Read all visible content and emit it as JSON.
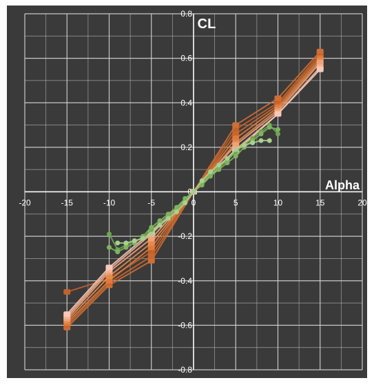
{
  "chart_data": {
    "type": "scatter",
    "title": "",
    "xlabel": "Alpha",
    "ylabel": "CL",
    "xlim": [
      -20,
      20
    ],
    "ylim": [
      -0.8,
      0.8
    ],
    "x_ticks": [
      "-20",
      "-15",
      "-10",
      "-5",
      "0",
      "5",
      "10",
      "15",
      "20"
    ],
    "y_ticks": [
      "0.8",
      "0.6",
      "0.4",
      "0.2",
      "0",
      "-0.2",
      "-0.4",
      "-0.6",
      "-0.8"
    ],
    "x_tick_values": [
      -20,
      -15,
      -10,
      -5,
      0,
      5,
      10,
      15,
      20
    ],
    "y_tick_values": [
      0.8,
      0.6,
      0.4,
      0.2,
      0,
      -0.2,
      -0.4,
      -0.6,
      -0.8
    ],
    "grid": true,
    "colors": {
      "background": "#3a3a3a",
      "grid": "#d8d8d8",
      "text": "#ffffff",
      "orange_dark": "#c0622a",
      "orange": "#e88a4c",
      "orange_light": "#f0a27a",
      "pink_light": "#f7c9b8",
      "green": "#6aa84f",
      "green_light": "#a9d08e"
    },
    "series": [
      {
        "color": "#c0622a",
        "x": [
          -15,
          -10,
          -5,
          0,
          5,
          10,
          15
        ],
        "y": [
          -0.45,
          -0.39,
          -0.27,
          0.0,
          0.28,
          0.4,
          0.62
        ]
      },
      {
        "color": "#d06e33",
        "x": [
          -15,
          -10,
          -5,
          0,
          5,
          10,
          15
        ],
        "y": [
          -0.61,
          -0.42,
          -0.31,
          0.0,
          0.3,
          0.42,
          0.63
        ]
      },
      {
        "color": "#c8672e",
        "x": [
          -15,
          -10,
          -5,
          0,
          5,
          10,
          15
        ],
        "y": [
          -0.6,
          -0.41,
          -0.29,
          0.0,
          0.26,
          0.39,
          0.61
        ]
      },
      {
        "color": "#e07a3a",
        "x": [
          -15,
          -10,
          -5,
          0,
          5,
          10,
          15
        ],
        "y": [
          -0.59,
          -0.4,
          -0.25,
          0.0,
          0.24,
          0.38,
          0.6
        ]
      },
      {
        "color": "#e88a4c",
        "x": [
          -15,
          -10,
          -5,
          0,
          5,
          10,
          15
        ],
        "y": [
          -0.58,
          -0.38,
          -0.23,
          0.0,
          0.22,
          0.37,
          0.59
        ]
      },
      {
        "color": "#f0a27a",
        "x": [
          -15,
          -10,
          -5,
          0,
          5,
          10,
          15
        ],
        "y": [
          -0.57,
          -0.36,
          -0.21,
          0.0,
          0.21,
          0.36,
          0.58
        ]
      },
      {
        "color": "#f4b396",
        "x": [
          -15,
          -10,
          -5,
          0,
          5,
          10,
          15
        ],
        "y": [
          -0.56,
          -0.35,
          -0.19,
          0.0,
          0.19,
          0.35,
          0.56
        ]
      },
      {
        "color": "#f7c9b8",
        "x": [
          -15,
          -10,
          -5,
          0,
          5,
          10,
          15
        ],
        "y": [
          -0.55,
          -0.34,
          -0.18,
          0.0,
          0.18,
          0.35,
          0.55
        ]
      },
      {
        "color": "#6aa84f",
        "x": [
          -10,
          -9,
          -8,
          -7,
          -6,
          -5,
          -4,
          -3,
          -2,
          -1,
          0,
          1,
          2,
          3,
          4,
          5,
          6,
          7,
          8,
          9,
          10
        ],
        "y": [
          -0.19,
          -0.26,
          -0.24,
          -0.22,
          -0.21,
          -0.17,
          -0.14,
          -0.11,
          -0.08,
          -0.04,
          0.0,
          0.04,
          0.08,
          0.11,
          0.14,
          0.18,
          0.21,
          0.24,
          0.27,
          0.3,
          0.26
        ]
      },
      {
        "color": "#7fb35f",
        "x": [
          -10,
          -9,
          -8,
          -7,
          -6,
          -5,
          -4,
          -3,
          -2,
          -1,
          0,
          1,
          2,
          3,
          4,
          5,
          6,
          7,
          8,
          9,
          10
        ],
        "y": [
          -0.25,
          -0.27,
          -0.25,
          -0.23,
          -0.2,
          -0.16,
          -0.13,
          -0.1,
          -0.07,
          -0.03,
          0.0,
          0.03,
          0.07,
          0.1,
          0.13,
          0.16,
          0.2,
          0.23,
          0.26,
          0.29,
          0.28
        ]
      },
      {
        "color": "#a9d08e",
        "x": [
          -9,
          -8,
          -7,
          -6,
          -5,
          -4,
          -3,
          -2,
          -1,
          0,
          1,
          2,
          3,
          4,
          5,
          6,
          7,
          8,
          9
        ],
        "y": [
          -0.23,
          -0.23,
          -0.22,
          -0.21,
          -0.19,
          -0.15,
          -0.12,
          -0.09,
          -0.05,
          0.0,
          0.05,
          0.09,
          0.12,
          0.15,
          0.19,
          0.21,
          0.22,
          0.23,
          0.23
        ]
      }
    ]
  }
}
